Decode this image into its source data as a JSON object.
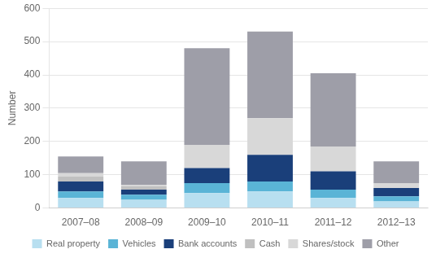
{
  "chart_data": {
    "type": "bar",
    "stacked": true,
    "categories": [
      "2007–08",
      "2008–09",
      "2009–10",
      "2010–11",
      "2011–12",
      "2012–13"
    ],
    "series": [
      {
        "name": "Real property",
        "color": "#b8dff0",
        "values": [
          30,
          25,
          45,
          50,
          30,
          20
        ]
      },
      {
        "name": "Vehicles",
        "color": "#5ab4d6",
        "values": [
          20,
          15,
          30,
          30,
          25,
          15
        ]
      },
      {
        "name": "Bank accounts",
        "color": "#1a3f7a",
        "values": [
          30,
          15,
          45,
          80,
          55,
          25
        ]
      },
      {
        "name": "Cash",
        "color": "#c0c0c0",
        "values": [
          15,
          10,
          0,
          0,
          0,
          0
        ]
      },
      {
        "name": "Shares/stock",
        "color": "#d8d8d8",
        "values": [
          10,
          5,
          70,
          110,
          75,
          15
        ]
      },
      {
        "name": "Other",
        "color": "#9e9ea8",
        "values": [
          50,
          70,
          290,
          260,
          220,
          65
        ]
      }
    ],
    "y_label": "Number",
    "ylim": [
      0,
      600
    ],
    "yticks": [
      0,
      100,
      200,
      300,
      400,
      500,
      600
    ],
    "grid": true,
    "legend": "bottom"
  }
}
